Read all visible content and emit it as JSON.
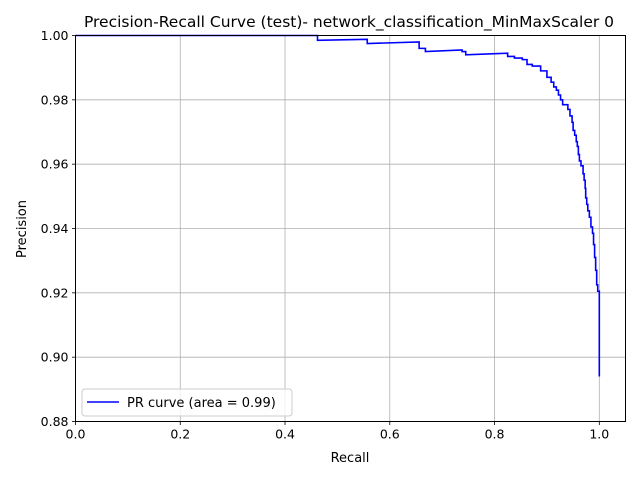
{
  "chart_data": {
    "type": "line",
    "title": "Precision-Recall Curve (test)- network_classification_MinMaxScaler 0",
    "xlabel": "Recall",
    "ylabel": "Precision",
    "xlim": [
      0.0,
      1.05
    ],
    "ylim": [
      0.88,
      1.0
    ],
    "grid": true,
    "legend_position": "lower left",
    "x_ticks": [
      "0.0",
      "0.2",
      "0.4",
      "0.6",
      "0.8",
      "1.0"
    ],
    "y_ticks": [
      "0.88",
      "0.90",
      "0.92",
      "0.94",
      "0.96",
      "0.98",
      "1.00"
    ],
    "series": [
      {
        "name": "PR curve (area = 0.99)",
        "color": "#0000ff",
        "step": true,
        "points": [
          [
            0.0,
            1.0
          ],
          [
            0.462,
            1.0
          ],
          [
            0.462,
            0.9985
          ],
          [
            0.557,
            0.9988
          ],
          [
            0.557,
            0.9975
          ],
          [
            0.656,
            0.998
          ],
          [
            0.656,
            0.996
          ],
          [
            0.668,
            0.996
          ],
          [
            0.668,
            0.995
          ],
          [
            0.738,
            0.9955
          ],
          [
            0.738,
            0.995
          ],
          [
            0.745,
            0.995
          ],
          [
            0.745,
            0.994
          ],
          [
            0.825,
            0.9945
          ],
          [
            0.825,
            0.9935
          ],
          [
            0.838,
            0.9935
          ],
          [
            0.838,
            0.993
          ],
          [
            0.853,
            0.993
          ],
          [
            0.853,
            0.9925
          ],
          [
            0.862,
            0.9925
          ],
          [
            0.862,
            0.991
          ],
          [
            0.872,
            0.991
          ],
          [
            0.872,
            0.9905
          ],
          [
            0.888,
            0.9905
          ],
          [
            0.888,
            0.989
          ],
          [
            0.9,
            0.989
          ],
          [
            0.9,
            0.987
          ],
          [
            0.908,
            0.987
          ],
          [
            0.908,
            0.9855
          ],
          [
            0.913,
            0.9855
          ],
          [
            0.913,
            0.984
          ],
          [
            0.918,
            0.984
          ],
          [
            0.918,
            0.983
          ],
          [
            0.922,
            0.983
          ],
          [
            0.922,
            0.9815
          ],
          [
            0.926,
            0.9815
          ],
          [
            0.926,
            0.98
          ],
          [
            0.93,
            0.98
          ],
          [
            0.93,
            0.9785
          ],
          [
            0.94,
            0.9785
          ],
          [
            0.94,
            0.977
          ],
          [
            0.944,
            0.977
          ],
          [
            0.944,
            0.975
          ],
          [
            0.948,
            0.975
          ],
          [
            0.948,
            0.973
          ],
          [
            0.95,
            0.973
          ],
          [
            0.95,
            0.9705
          ],
          [
            0.953,
            0.9705
          ],
          [
            0.953,
            0.969
          ],
          [
            0.956,
            0.969
          ],
          [
            0.956,
            0.967
          ],
          [
            0.958,
            0.967
          ],
          [
            0.958,
            0.9655
          ],
          [
            0.96,
            0.9655
          ],
          [
            0.96,
            0.963
          ],
          [
            0.962,
            0.963
          ],
          [
            0.962,
            0.961
          ],
          [
            0.965,
            0.961
          ],
          [
            0.965,
            0.9595
          ],
          [
            0.969,
            0.9595
          ],
          [
            0.969,
            0.957
          ],
          [
            0.971,
            0.957
          ],
          [
            0.971,
            0.955
          ],
          [
            0.973,
            0.955
          ],
          [
            0.973,
            0.9525
          ],
          [
            0.974,
            0.9525
          ],
          [
            0.974,
            0.9495
          ],
          [
            0.976,
            0.9495
          ],
          [
            0.976,
            0.9475
          ],
          [
            0.978,
            0.9475
          ],
          [
            0.978,
            0.9455
          ],
          [
            0.981,
            0.9455
          ],
          [
            0.981,
            0.9435
          ],
          [
            0.984,
            0.9435
          ],
          [
            0.984,
            0.9405
          ],
          [
            0.987,
            0.9405
          ],
          [
            0.987,
            0.9385
          ],
          [
            0.989,
            0.9385
          ],
          [
            0.989,
            0.935
          ],
          [
            0.991,
            0.935
          ],
          [
            0.991,
            0.931
          ],
          [
            0.993,
            0.931
          ],
          [
            0.993,
            0.927
          ],
          [
            0.995,
            0.927
          ],
          [
            0.995,
            0.9225
          ],
          [
            0.997,
            0.9225
          ],
          [
            0.997,
            0.9205
          ],
          [
            1.0,
            0.9205
          ],
          [
            1.0,
            0.894
          ]
        ]
      }
    ]
  }
}
